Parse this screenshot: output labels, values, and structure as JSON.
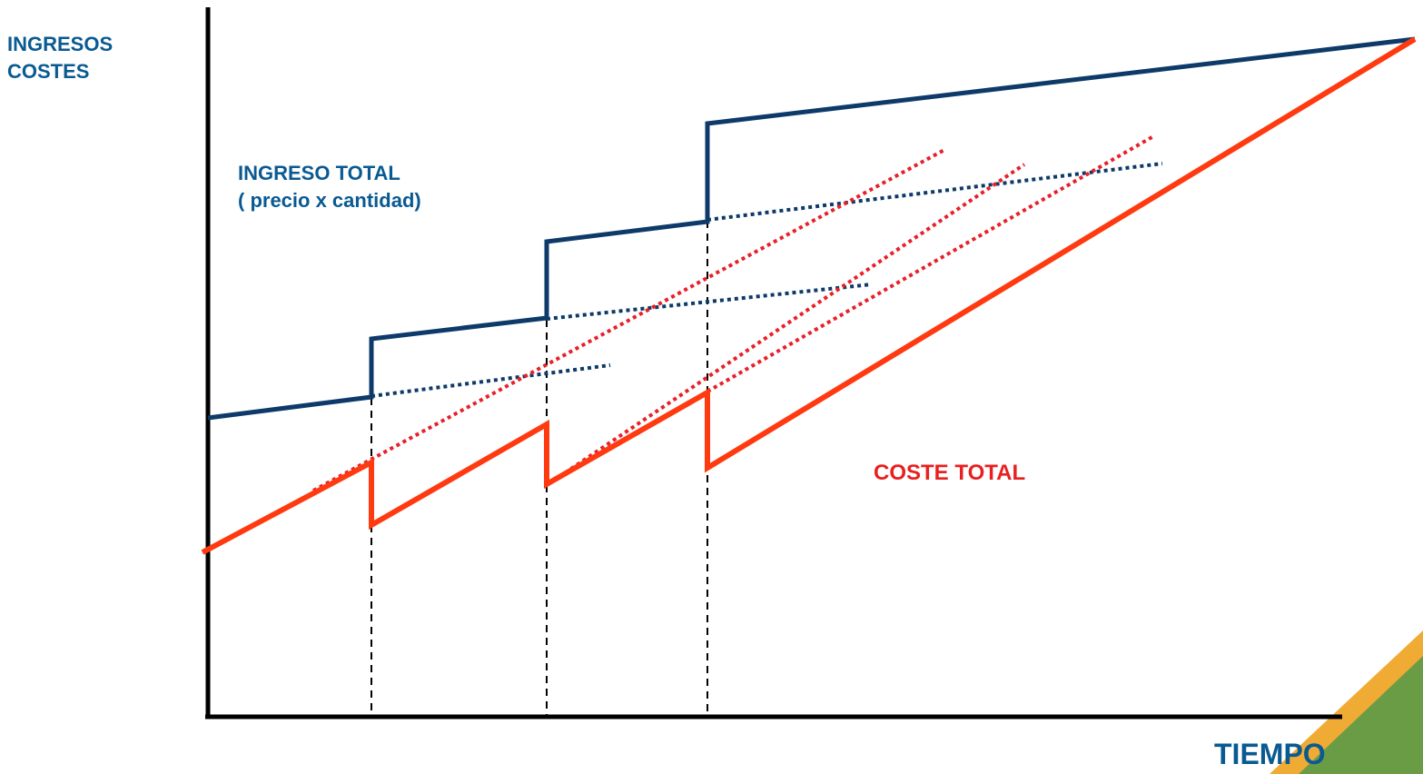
{
  "y_axis_label": [
    "INGRESOS",
    "COSTES"
  ],
  "x_axis_label": "TIEMPO",
  "revenue_label": [
    "INGRESO TOTAL",
    "( precio x cantidad)"
  ],
  "cost_label": "COSTE TOTAL",
  "colors": {
    "revenue": "#0d3a68",
    "revenue_text": "#0a5a92",
    "cost": "#ff3a10",
    "cost_dotted": "#e8202a",
    "cost_text": "#e82020",
    "axis": "#000000",
    "corner_orange": "#f0ab35",
    "corner_green": "#6a9c46"
  }
}
